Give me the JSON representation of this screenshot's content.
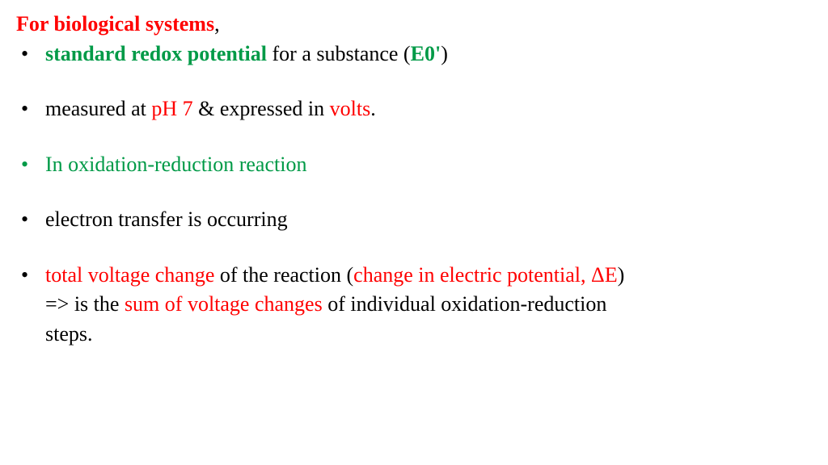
{
  "heading": {
    "strong": "For biological systems",
    "tail": ","
  },
  "bullets": [
    {
      "class": "bullet-black",
      "gap": false,
      "spans": [
        {
          "text": " ",
          "class": "black"
        },
        {
          "text": "standard redox potential",
          "class": "green bold"
        },
        {
          "text": " for a substance (",
          "class": "black"
        },
        {
          "text": "E0'",
          "class": "green bold"
        },
        {
          "text": ")",
          "class": "black"
        }
      ]
    },
    {
      "class": "bullet-black",
      "gap": true,
      "spans": [
        {
          "text": " measured at ",
          "class": "black"
        },
        {
          "text": "pH 7",
          "class": "red"
        },
        {
          "text": " &  expressed in ",
          "class": "black"
        },
        {
          "text": "volts",
          "class": "red"
        },
        {
          "text": ".",
          "class": "black"
        }
      ]
    },
    {
      "class": "bullet-green",
      "gap": true,
      "spans": [
        {
          "text": "In oxidation-reduction reaction",
          "class": "green"
        }
      ]
    },
    {
      "class": "bullet-black",
      "gap": true,
      "spans": [
        {
          "text": "electron transfer is occurring",
          "class": "black"
        }
      ]
    },
    {
      "class": "bullet-black",
      "gap": true,
      "spans": [
        {
          "text": " ",
          "class": "black"
        },
        {
          "text": "total voltage change",
          "class": "red"
        },
        {
          "text": " of the reaction (",
          "class": "black"
        },
        {
          "text": "change in electric potential, ΔE",
          "class": "red"
        },
        {
          "text": ")",
          "class": "black"
        }
      ],
      "cont": [
        [
          {
            "text": "=> is the ",
            "class": "black"
          },
          {
            "text": "sum of voltage changes ",
            "class": "red"
          },
          {
            "text": " of  individual oxidation-reduction",
            "class": "black"
          }
        ],
        [
          {
            "text": "steps.",
            "class": "black"
          }
        ]
      ]
    }
  ]
}
